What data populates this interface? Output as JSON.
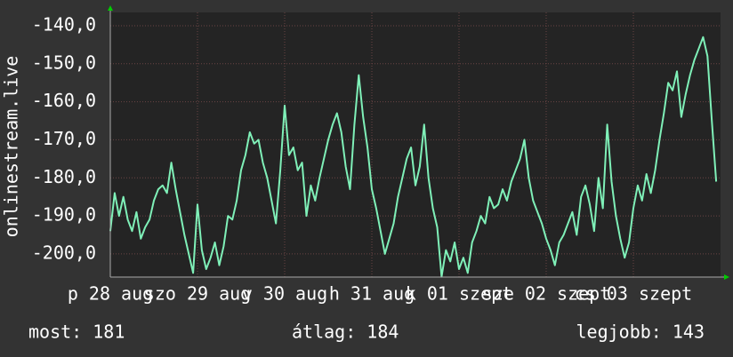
{
  "chart_data": {
    "type": "line",
    "y_label": "onlinestream.live",
    "color": "#7ff0b8",
    "grid": true,
    "ylim": [
      -206.1,
      -136.5
    ],
    "yticks": [
      {
        "value": -140,
        "label": "-140,0"
      },
      {
        "value": -150,
        "label": "-150,0"
      },
      {
        "value": -160,
        "label": "-160,0"
      },
      {
        "value": -170,
        "label": "-170,0"
      },
      {
        "value": -180,
        "label": "-180,0"
      },
      {
        "value": -190,
        "label": "-190,0"
      },
      {
        "value": -200,
        "label": "-200,0"
      }
    ],
    "xlim": [
      0,
      7
    ],
    "xticks": [
      {
        "value": 0,
        "label": "p 28 aug"
      },
      {
        "value": 1,
        "label": "szo 29 aug"
      },
      {
        "value": 2,
        "label": "v 30 aug"
      },
      {
        "value": 3,
        "label": "h 31 aug"
      },
      {
        "value": 4,
        "label": "k 01 szept"
      },
      {
        "value": 5,
        "label": "sze 02 szept"
      },
      {
        "value": 6,
        "label": "cs 03 szept"
      }
    ],
    "values": [
      -194,
      -184,
      -190,
      -185,
      -191,
      -194,
      -189,
      -196,
      -193,
      -191,
      -186,
      -183,
      -182,
      -184,
      -176,
      -183,
      -189,
      -195,
      -200,
      -205,
      -187,
      -199,
      -204,
      -201,
      -197,
      -203,
      -198,
      -190,
      -191,
      -186,
      -178,
      -174,
      -168,
      -171,
      -170,
      -176,
      -180,
      -186,
      -192,
      -178,
      -161,
      -174,
      -172,
      -178,
      -176,
      -190,
      -182,
      -186,
      -180,
      -175,
      -170,
      -166,
      -163,
      -168,
      -177,
      -183,
      -166,
      -153,
      -164,
      -172,
      -183,
      -188,
      -194,
      -200,
      -196,
      -192,
      -185,
      -180,
      -175,
      -172,
      -182,
      -177,
      -166,
      -180,
      -188,
      -193,
      -206,
      -199,
      -202,
      -197,
      -204,
      -201,
      -205,
      -197,
      -194,
      -190,
      -192,
      -185,
      -188,
      -187,
      -183,
      -186,
      -181,
      -178,
      -175,
      -170,
      -180,
      -186,
      -189,
      -192,
      -196,
      -199,
      -203,
      -197,
      -195,
      -192,
      -189,
      -195,
      -185,
      -182,
      -187,
      -194,
      -180,
      -188,
      -166,
      -181,
      -190,
      -196,
      -201,
      -197,
      -188,
      -182,
      -186,
      -179,
      -184,
      -178,
      -170,
      -163,
      -155,
      -157,
      -152,
      -164,
      -158,
      -153,
      -149,
      -146,
      -143,
      -148,
      -165,
      -181
    ],
    "footer": {
      "current": "most: 181",
      "average": "átlag: 184",
      "best": "legjobb: 143"
    }
  }
}
